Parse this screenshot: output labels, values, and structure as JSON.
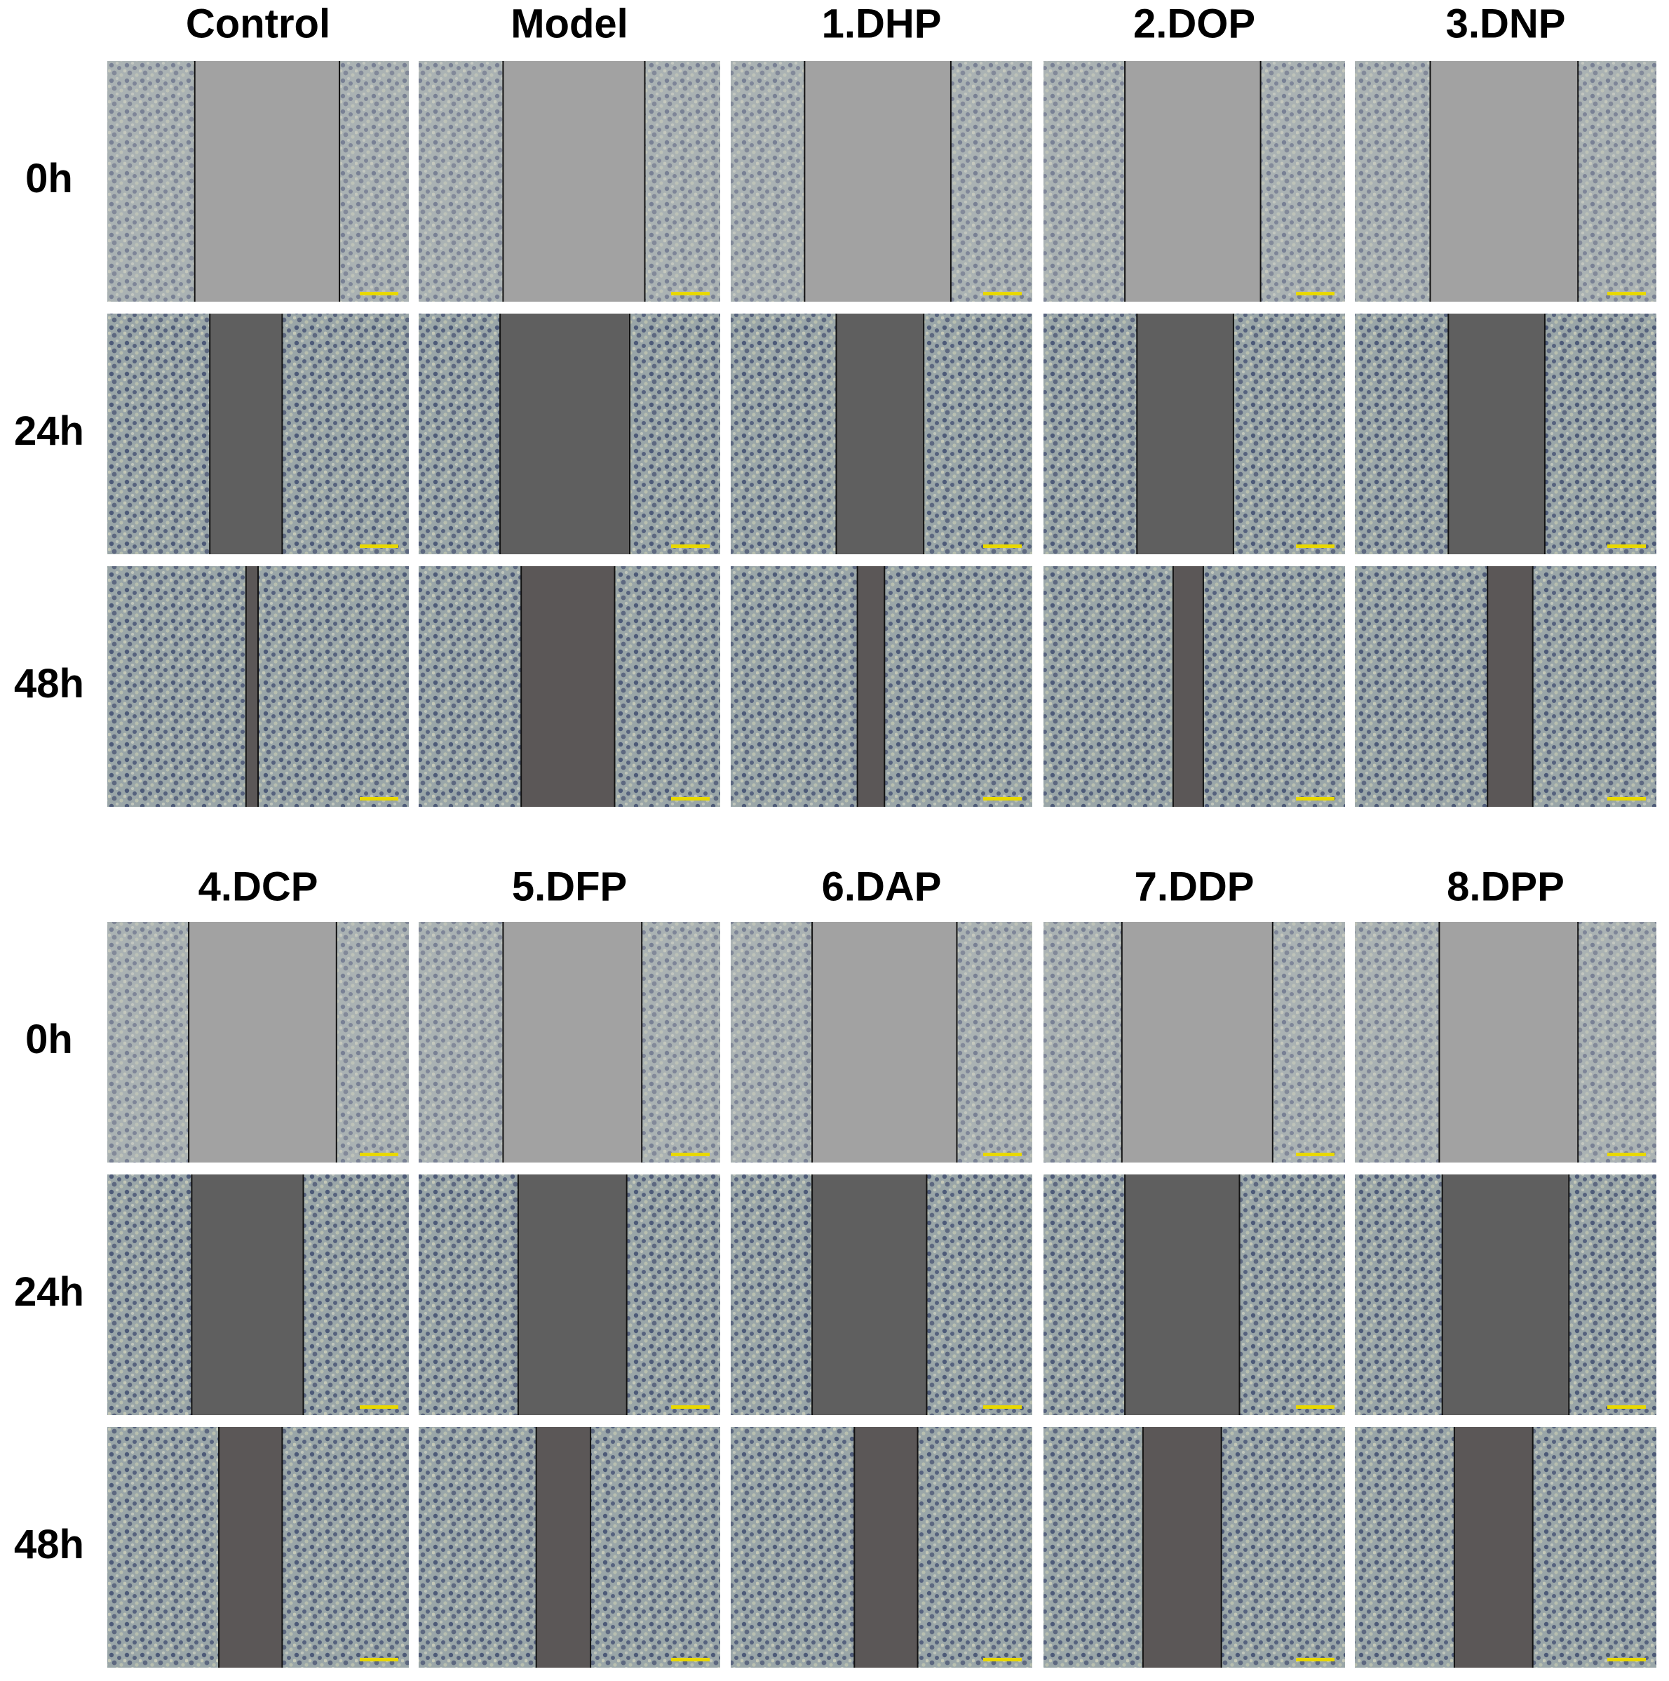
{
  "blocks": [
    {
      "columns": [
        "Control",
        "Model",
        "1.DHP",
        "2.DOP",
        "3.DNP"
      ],
      "rows": [
        "0h",
        "24h",
        "48h"
      ]
    },
    {
      "columns": [
        "4.DCP",
        "5.DFP",
        "6.DAP",
        "7.DDP",
        "8.DPP"
      ],
      "rows": [
        "0h",
        "24h",
        "48h"
      ]
    }
  ]
}
